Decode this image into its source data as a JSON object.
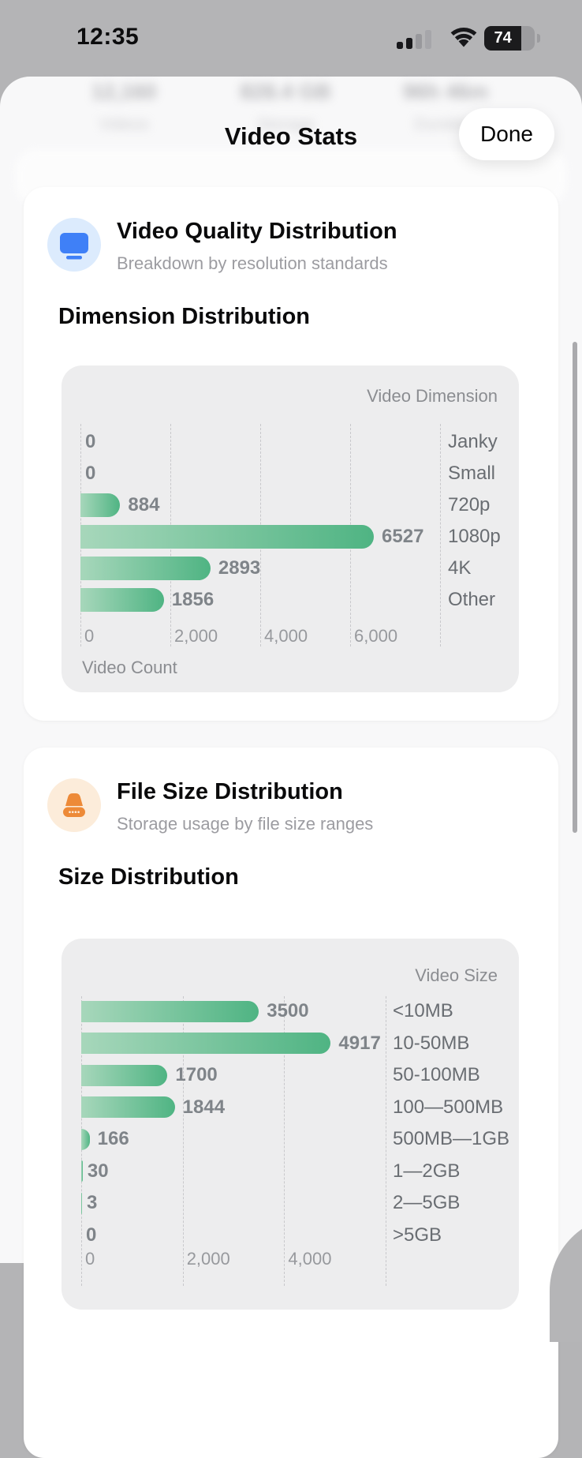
{
  "status_bar": {
    "time": "12:35",
    "battery_percent": "74"
  },
  "background_stats": {
    "items": [
      {
        "value": "12,160",
        "label": "Videos"
      },
      {
        "value": "828.4 GB",
        "label": "Storage"
      },
      {
        "value": "96h 46m",
        "label": "Duration"
      }
    ]
  },
  "header": {
    "title": "Video Stats",
    "done_label": "Done"
  },
  "cards": [
    {
      "icon": "display-icon",
      "icon_bg": "#dcebfd",
      "icon_color": "#3f80f7",
      "title": "Video Quality Distribution",
      "subtitle": "Breakdown by resolution standards",
      "section_heading": "Dimension Distribution"
    },
    {
      "icon": "drive-icon",
      "icon_bg": "#fcecda",
      "icon_color": "#ed8a38",
      "title": "File Size Distribution",
      "subtitle": "Storage usage by file size ranges",
      "section_heading": "Size Distribution"
    }
  ],
  "chart_data": [
    {
      "type": "bar",
      "orientation": "horizontal",
      "title": "Dimension Distribution",
      "legend_label": "Video Dimension",
      "xlabel": "Video Count",
      "categories": [
        "Janky",
        "Small",
        "720p",
        "1080p",
        "4K",
        "Other"
      ],
      "values": [
        0,
        0,
        884,
        6527,
        2893,
        1856
      ],
      "x_ticks": [
        "0",
        "2,000",
        "4,000",
        "6,000"
      ],
      "xlim": [
        0,
        8000
      ],
      "grid": "dashed-vertical",
      "legend_position": "top-right",
      "bar_color_gradient": [
        "#a7d7bb",
        "#4fb483"
      ]
    },
    {
      "type": "bar",
      "orientation": "horizontal",
      "title": "Size Distribution",
      "legend_label": "Video Size",
      "xlabel": "",
      "categories": [
        "<10MB",
        "10-50MB",
        "50-100MB",
        "100—500MB",
        "500MB—1GB",
        "1—2GB",
        "2—5GB",
        ">5GB"
      ],
      "values": [
        3500,
        4917,
        1700,
        1844,
        166,
        30,
        3,
        0
      ],
      "x_ticks": [
        "0",
        "2,000",
        "4,000"
      ],
      "xlim": [
        0,
        6000
      ],
      "grid": "dashed-vertical",
      "legend_position": "top-right",
      "bar_color_gradient": [
        "#a7d7bb",
        "#4fb483"
      ]
    }
  ]
}
